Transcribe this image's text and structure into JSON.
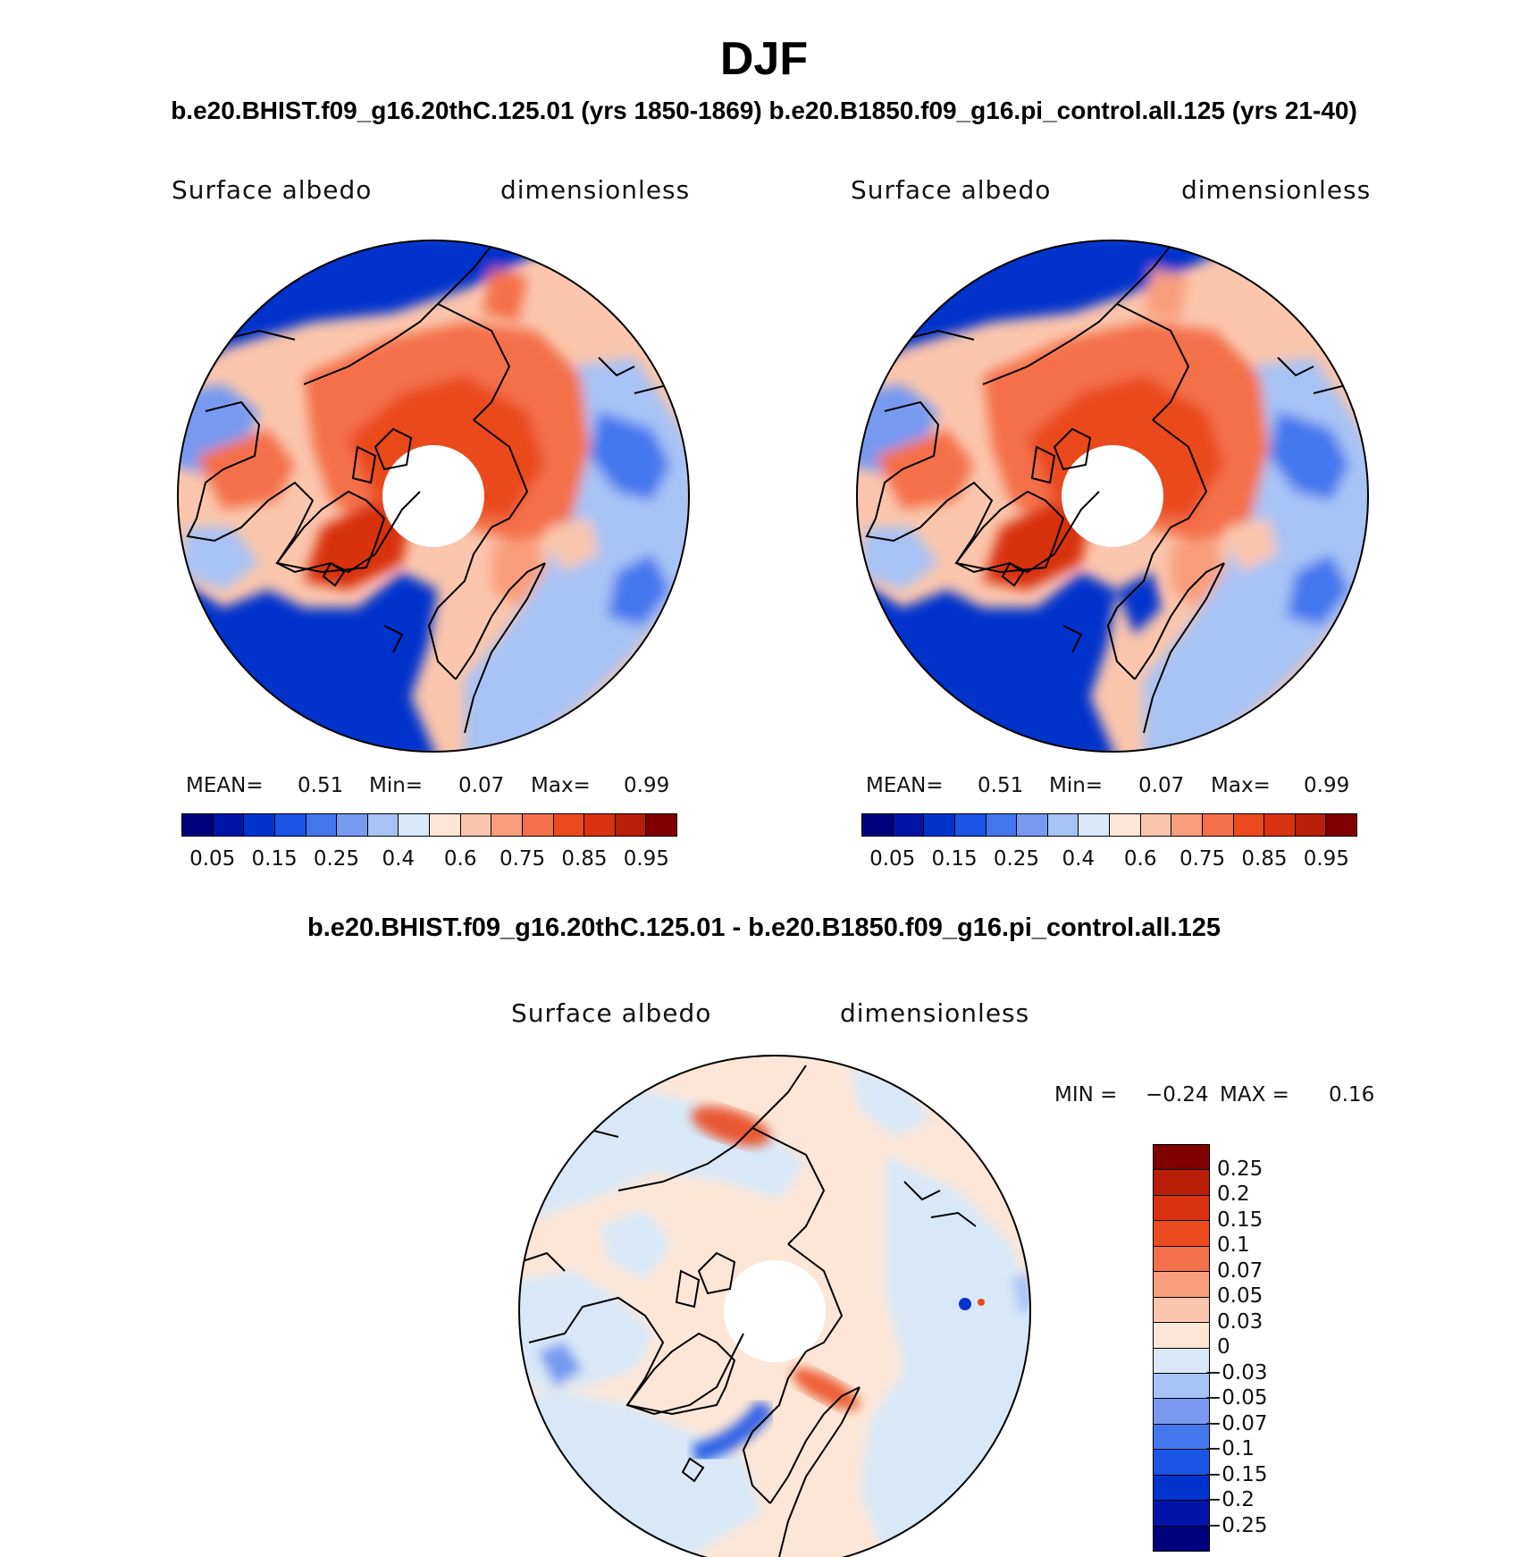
{
  "title": "DJF",
  "subtitle": "b.e20.BHIST.f09_g16.20thC.125.01 (yrs 1850-1869)  b.e20.B1850.f09_g16.pi_control.all.125 (yrs 21-40)",
  "panels": [
    {
      "variable": "Surface albedo",
      "units": "dimensionless",
      "mean_label": "MEAN=",
      "mean": "0.51",
      "min_label": "Min=",
      "min": "0.07",
      "max_label": "Max=",
      "max": "0.99"
    },
    {
      "variable": "Surface albedo",
      "units": "dimensionless",
      "mean_label": "MEAN=",
      "mean": "0.51",
      "min_label": "Min=",
      "min": "0.07",
      "max_label": "Max=",
      "max": "0.99"
    }
  ],
  "colorbar": {
    "colors": [
      "#00007f",
      "#0014a8",
      "#0033cc",
      "#1a55e6",
      "#4477ee",
      "#7799f0",
      "#a7c3f5",
      "#d8e8f8",
      "#fde6d6",
      "#fbc6ad",
      "#f99e7c",
      "#f4704a",
      "#ea4a1e",
      "#d83210",
      "#b81e08",
      "#800000"
    ],
    "ticks": [
      "0.05",
      "0.15",
      "0.25",
      "0.4",
      "0.6",
      "0.75",
      "0.85",
      "0.95"
    ]
  },
  "diff": {
    "title": "b.e20.BHIST.f09_g16.20thC.125.01 - b.e20.B1850.f09_g16.pi_control.all.125",
    "variable": "Surface albedo",
    "units": "dimensionless",
    "min_label": "MIN =",
    "min": "−0.24",
    "max_label": "MAX =",
    "max": "0.16",
    "colorbar": {
      "colors": [
        "#800000",
        "#b81e08",
        "#d83210",
        "#ea4a1e",
        "#f4704a",
        "#f99e7c",
        "#fbc6ad",
        "#fde6d6",
        "#d8e8f8",
        "#a7c3f5",
        "#7799f0",
        "#4477ee",
        "#1a55e6",
        "#0033cc",
        "#0014a8",
        "#00007f"
      ],
      "ticks": [
        "0.25",
        "0.2",
        "0.15",
        "0.1",
        "0.07",
        "0.05",
        "0.03",
        "0",
        "−0.03",
        "−0.05",
        "−0.07",
        "−0.1",
        "−0.15",
        "−0.2",
        "−0.25"
      ]
    }
  }
}
